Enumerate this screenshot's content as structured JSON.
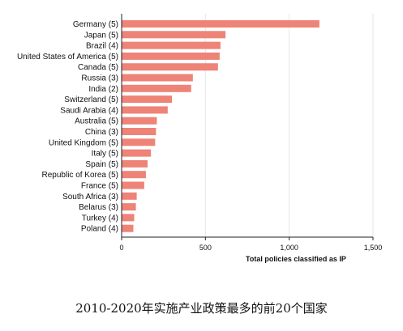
{
  "chart_data": {
    "type": "bar",
    "orientation": "horizontal",
    "categories": [
      "Germany (5)",
      "Japan (5)",
      "Brazil (4)",
      "United States of America (5)",
      "Canada (5)",
      "Russia (3)",
      "India (2)",
      "Switzerland (5)",
      "Saudi Arabia (4)",
      "Australia (5)",
      "China (3)",
      "United Kingdom (5)",
      "Italy (5)",
      "Spain (5)",
      "Republic of Korea (5)",
      "France (5)",
      "South Africa (3)",
      "Belarus (3)",
      "Turkey (4)",
      "Poland (4)"
    ],
    "values": [
      1180,
      620,
      590,
      585,
      575,
      425,
      415,
      300,
      275,
      210,
      205,
      200,
      175,
      155,
      145,
      135,
      90,
      85,
      75,
      70
    ],
    "xlabel": "Total policies classified as IP",
    "ylabel": "",
    "title": "",
    "xlim": [
      0,
      1500
    ],
    "xticks": [
      0,
      500,
      1000,
      1500
    ],
    "xtick_labels": [
      "0",
      "500",
      "1,000",
      "1,500"
    ],
    "grid": "vertical",
    "legend": "none",
    "bar_color": "#ee8377"
  },
  "caption": "2010-2020年实施产业政策最多的前20个国家"
}
